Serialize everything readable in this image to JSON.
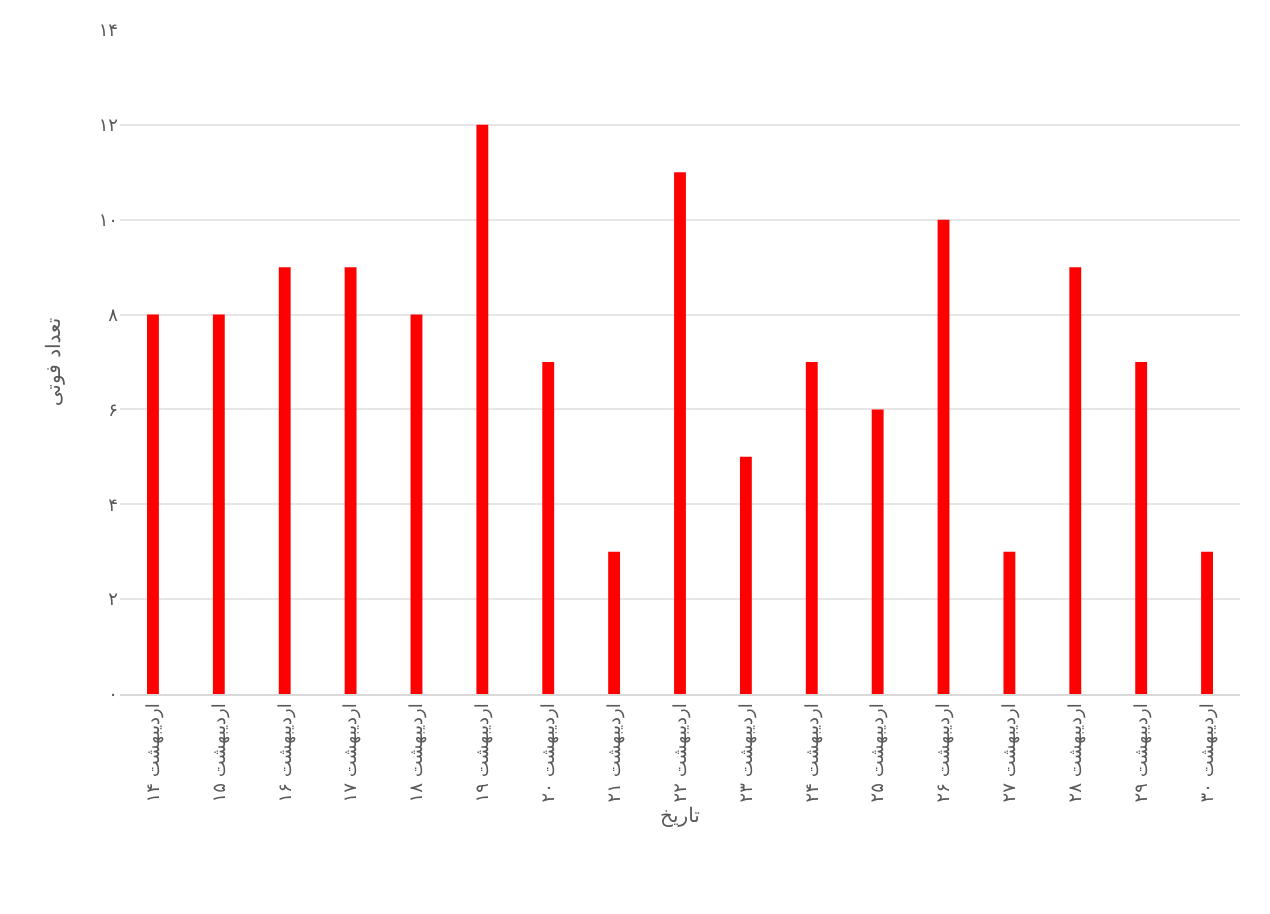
{
  "chart_data": {
    "type": "bar",
    "xlabel": "تاریخ",
    "ylabel": "تعداد فوتی",
    "categories": [
      "۱۴ اردیبهشت",
      "۱۵ اردیبهشت",
      "۱۶ اردیبهشت",
      "۱۷ اردیبهشت",
      "۱۸ اردیبهشت",
      "۱۹ اردیبهشت",
      "۲۰ اردیبهشت",
      "۲۱ اردیبهشت",
      "۲۲ اردیبهشت",
      "۲۳ اردیبهشت",
      "۲۴ اردیبهشت",
      "۲۵ اردیبهشت",
      "۲۶ اردیبهشت",
      "۲۷ اردیبهشت",
      "۲۸ اردیبهشت",
      "۲۹ اردیبهشت",
      "۳۰ اردیبهشت"
    ],
    "values": [
      8,
      8,
      9,
      9,
      8,
      12,
      7,
      3,
      11,
      5,
      7,
      6,
      10,
      3,
      9,
      7,
      3
    ],
    "color": "#ff0000",
    "ylim": [
      0,
      14
    ],
    "yticks": [
      {
        "value": 0,
        "label": "۰"
      },
      {
        "value": 2,
        "label": "۲"
      },
      {
        "value": 4,
        "label": "۴"
      },
      {
        "value": 6,
        "label": "۶"
      },
      {
        "value": 8,
        "label": "۸"
      },
      {
        "value": 10,
        "label": "۱۰"
      },
      {
        "value": 12,
        "label": "۱۲"
      },
      {
        "value": 14,
        "label": "۱۴"
      }
    ],
    "grid": "y"
  }
}
